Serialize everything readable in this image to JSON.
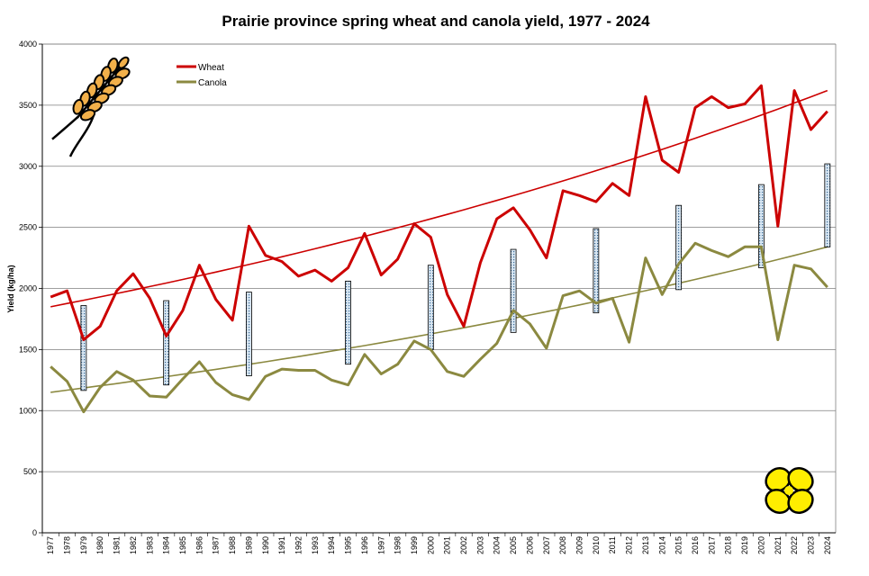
{
  "chart_data": {
    "type": "line",
    "title": "Prairie province spring wheat and canola yield, 1977 - 2024",
    "ylabel": "Yield (kg/ha)",
    "xlabel": "",
    "ylim": [
      0,
      4000
    ],
    "yticks": [
      0,
      500,
      1000,
      1500,
      2000,
      2500,
      3000,
      3500,
      4000
    ],
    "grid": "horizontal",
    "legend_position": "top-left",
    "x": [
      "1977",
      "1978",
      "1979",
      "1980",
      "1981",
      "1982",
      "1983",
      "1984",
      "1985",
      "1986",
      "1987",
      "1988",
      "1989",
      "1990",
      "1991",
      "1992",
      "1993",
      "1994",
      "1995",
      "1996",
      "1997",
      "1998",
      "1999",
      "2000",
      "2001",
      "2002",
      "2003",
      "2004",
      "2005",
      "2006",
      "2007",
      "2008",
      "2009",
      "2010",
      "2011",
      "2012",
      "2013",
      "2014",
      "2015",
      "2016",
      "2017",
      "2018",
      "2019",
      "2020",
      "2021",
      "2022",
      "2023",
      "2024"
    ],
    "series": [
      {
        "name": "Wheat",
        "color": "#cc0000",
        "values": [
          1930,
          1980,
          1580,
          1690,
          1980,
          2120,
          1920,
          1610,
          1820,
          2190,
          1910,
          1740,
          2510,
          2270,
          2220,
          2100,
          2150,
          2060,
          2170,
          2450,
          2110,
          2240,
          2530,
          2420,
          1950,
          1690,
          2210,
          2570,
          2660,
          2480,
          2250,
          2800,
          2760,
          2710,
          2860,
          2760,
          3570,
          3050,
          2950,
          3480,
          3570,
          3480,
          3510,
          3660,
          2510,
          3620,
          3300,
          3450
        ]
      },
      {
        "name": "Canola",
        "color": "#8b8940",
        "values": [
          1360,
          1240,
          990,
          1190,
          1320,
          1250,
          1120,
          1110,
          1260,
          1400,
          1230,
          1130,
          1090,
          1280,
          1340,
          1330,
          1330,
          1250,
          1210,
          1460,
          1300,
          1380,
          1570,
          1500,
          1320,
          1280,
          1420,
          1550,
          1820,
          1710,
          1510,
          1940,
          1980,
          1880,
          1920,
          1560,
          2250,
          1950,
          2200,
          2370,
          2310,
          2260,
          2340,
          2340,
          1580,
          2190,
          2160,
          2010
        ]
      }
    ],
    "trendlines": [
      {
        "series": "Wheat",
        "color": "#cc0000",
        "start": 1850,
        "end": 3620
      },
      {
        "series": "Canola",
        "color": "#8b8940",
        "start": 1150,
        "end": 2340
      }
    ],
    "gap_bars": [
      {
        "x": "1979",
        "low": 1165,
        "high": 1860
      },
      {
        "x": "1984",
        "low": 1210,
        "high": 1900
      },
      {
        "x": "1989",
        "low": 1285,
        "high": 1970
      },
      {
        "x": "1995",
        "low": 1380,
        "high": 2060
      },
      {
        "x": "2000",
        "low": 1500,
        "high": 2190
      },
      {
        "x": "2005",
        "low": 1640,
        "high": 2320
      },
      {
        "x": "2010",
        "low": 1800,
        "high": 2490
      },
      {
        "x": "2015",
        "low": 1990,
        "high": 2680
      },
      {
        "x": "2020",
        "low": 2170,
        "high": 2850
      },
      {
        "x": "2024",
        "low": 2340,
        "high": 3020
      }
    ],
    "icons": [
      "wheat-ear-icon",
      "canola-flower-icon"
    ],
    "icon_colors": {
      "wheat": "#f2b04a",
      "canola": "#ffee00"
    }
  }
}
